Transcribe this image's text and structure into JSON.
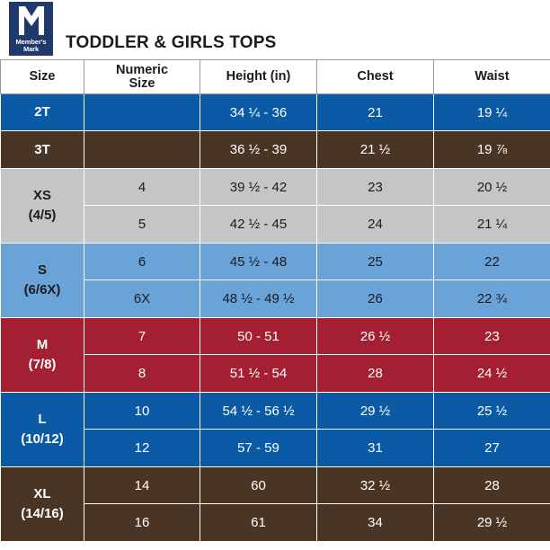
{
  "logo": {
    "line1": "Member's",
    "line2": "Mark"
  },
  "title": "TODDLER & GIRLS TOPS",
  "headers": [
    "Size",
    "Numeric Size",
    "Height (in)",
    "Chest",
    "Waist"
  ],
  "groups": [
    {
      "size": "2T",
      "range": "",
      "bg": "#0a5aa5",
      "fg": "#ffffff",
      "border": "#ffffff",
      "rows": [
        {
          "numeric": "",
          "height": "34 ¼ - 36",
          "chest": "21",
          "waist": "19 ¼"
        }
      ]
    },
    {
      "size": "3T",
      "range": "",
      "bg": "#4a3424",
      "fg": "#ffffff",
      "border": "#ffffff",
      "rows": [
        {
          "numeric": "",
          "height": "36 ½ - 39",
          "chest": "21 ½",
          "waist": "19 ⅞"
        }
      ]
    },
    {
      "size": "XS",
      "range": "(4/5)",
      "bg": "#c5c5c5",
      "fg": "#1b1b1b",
      "border": "#ffffff",
      "rows": [
        {
          "numeric": "4",
          "height": "39 ½ - 42",
          "chest": "23",
          "waist": "20 ½"
        },
        {
          "numeric": "5",
          "height": "42 ½ - 45",
          "chest": "24",
          "waist": "21 ¼"
        }
      ]
    },
    {
      "size": "S",
      "range": "(6/6X)",
      "bg": "#6aa3d8",
      "fg": "#1b1b1b",
      "border": "#ffffff",
      "rows": [
        {
          "numeric": "6",
          "height": "45 ½ - 48",
          "chest": "25",
          "waist": "22"
        },
        {
          "numeric": "6X",
          "height": "48 ½ - 49 ½",
          "chest": "26",
          "waist": "22 ¾"
        }
      ]
    },
    {
      "size": "M",
      "range": "(7/8)",
      "bg": "#a51f33",
      "fg": "#ffffff",
      "border": "#ffffff",
      "rows": [
        {
          "numeric": "7",
          "height": "50 - 51",
          "chest": "26 ½",
          "waist": "23"
        },
        {
          "numeric": "8",
          "height": "51 ½ - 54",
          "chest": "28",
          "waist": "24 ½"
        }
      ]
    },
    {
      "size": "L",
      "range": "(10/12)",
      "bg": "#0a5aa5",
      "fg": "#ffffff",
      "border": "#ffffff",
      "rows": [
        {
          "numeric": "10",
          "height": "54 ½ - 56 ½",
          "chest": "29 ½",
          "waist": "25 ½"
        },
        {
          "numeric": "12",
          "height": "57 - 59",
          "chest": "31",
          "waist": "27"
        }
      ]
    },
    {
      "size": "XL",
      "range": "(14/16)",
      "bg": "#4a3424",
      "fg": "#ffffff",
      "border": "#ffffff",
      "rows": [
        {
          "numeric": "14",
          "height": "60",
          "chest": "32 ½",
          "waist": "28"
        },
        {
          "numeric": "16",
          "height": "61",
          "chest": "34",
          "waist": "29 ½"
        }
      ]
    }
  ]
}
